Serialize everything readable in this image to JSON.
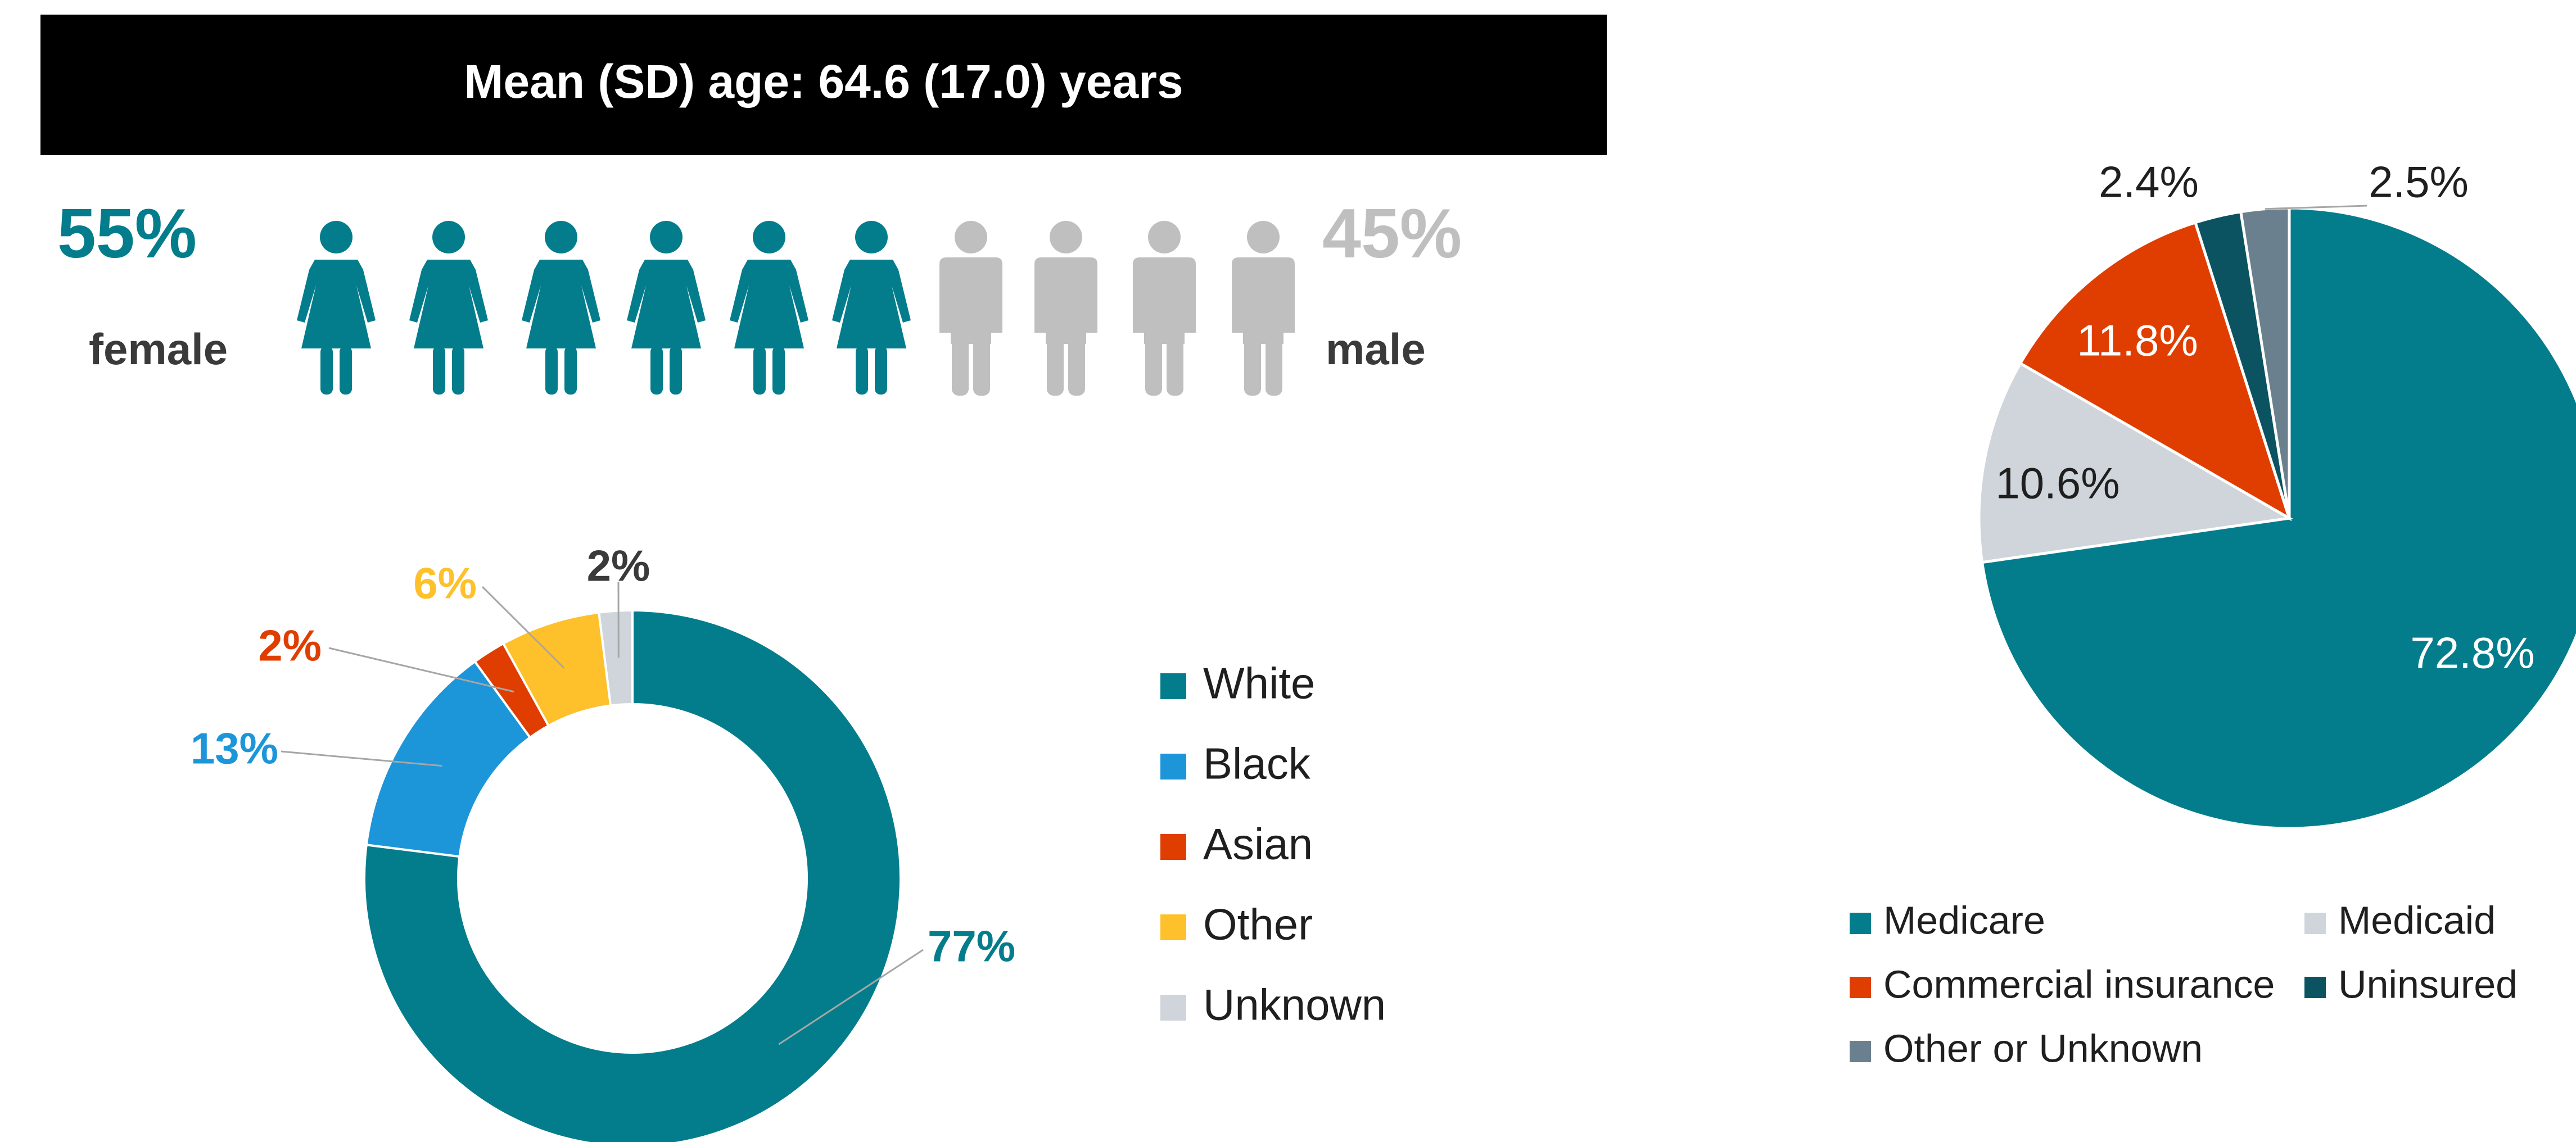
{
  "colors": {
    "teal": "#037d8c",
    "gray_figure": "#bfbfbf",
    "blue": "#1c96d8",
    "orange_red": "#e03e00",
    "yellow": "#fec12c",
    "light_gray": "#cfd5da",
    "dark_teal": "#0c5361",
    "slate": "#6a808e",
    "dark_text": "#3a3a3a",
    "black": "#000000"
  },
  "banner": {
    "text": "Mean (SD) age: 64.6 (17.0) years"
  },
  "sex": {
    "female_pct": "55%",
    "female_label": "female",
    "male_pct": "45%",
    "male_label": "male",
    "female_icon": "woman-icon",
    "male_icon": "man-icon",
    "female_count": 6,
    "male_count": 4
  },
  "chart_data": [
    {
      "type": "pie",
      "variant": "donut",
      "categories": [
        "White",
        "Black",
        "Asian",
        "Other",
        "Unknown"
      ],
      "values": [
        77,
        13,
        2,
        6,
        2
      ],
      "labels": [
        "77%",
        "13%",
        "2%",
        "6%",
        "2%"
      ],
      "colors": [
        "#037d8c",
        "#1c96d8",
        "#e03e00",
        "#fec12c",
        "#cfd5da"
      ],
      "label_colors": [
        "#037d8c",
        "#1c96d8",
        "#e03e00",
        "#fec12c",
        "#3a3a3a"
      ],
      "legend": [
        "White",
        "Black",
        "Asian",
        "Other",
        "Unknown"
      ],
      "legend_position": "right"
    },
    {
      "type": "pie",
      "categories": [
        "Medicare",
        "Medicaid",
        "Commercial insurance",
        "Uninsured",
        "Other or Unknown"
      ],
      "values": [
        72.8,
        10.6,
        11.8,
        2.4,
        2.5
      ],
      "labels": [
        "72.8%",
        "10.6%",
        "11.8%",
        "2.4%",
        "2.5%"
      ],
      "colors": [
        "#037d8c",
        "#cfd5da",
        "#e03e00",
        "#0c5361",
        "#6a808e"
      ],
      "legend": [
        "Medicare",
        "Medicaid",
        "Commercial insurance",
        "Uninsured",
        "Other or Unknown"
      ],
      "legend_position": "bottom"
    }
  ]
}
